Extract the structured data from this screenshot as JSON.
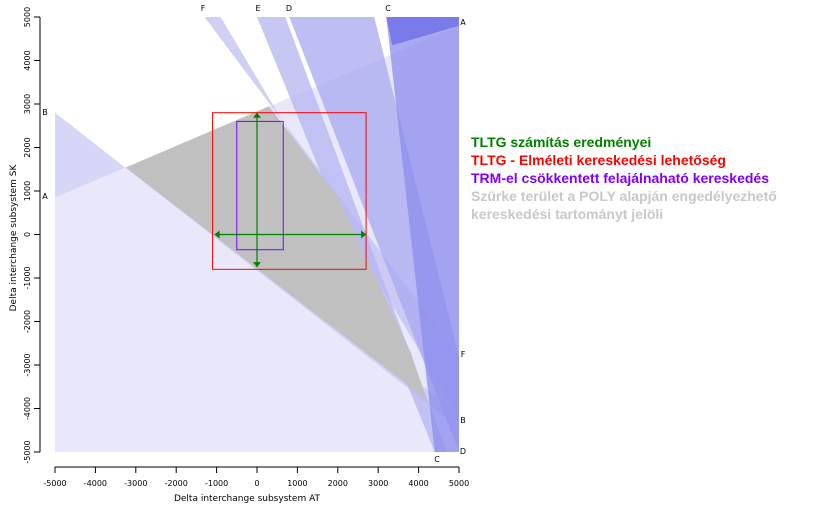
{
  "chart_data": {
    "type": "area",
    "title": "",
    "xlabel": "Delta interchange subsystem  AT",
    "ylabel": "Delta interchange subsystem  SK",
    "xlim": [
      -5000,
      5000
    ],
    "ylim": [
      -5000,
      5000
    ],
    "xticks": [
      "-5000",
      "-4000",
      "-3000",
      "-2000",
      "-1000",
      "0",
      "1000",
      "2000",
      "3000",
      "4000",
      "5000"
    ],
    "yticks": [
      "-5000",
      "-4000",
      "-3000",
      "-2000",
      "-1000",
      "0",
      "1000",
      "2000",
      "3000",
      "4000",
      "5000"
    ],
    "grid": false,
    "legend_position": "right",
    "constraint_bands": [
      {
        "name": "A",
        "label_top": "A",
        "label_bottom": "A",
        "points": [
          [
            -5000,
            -5000
          ],
          [
            5000,
            -5000
          ],
          [
            5000,
            4800
          ],
          [
            -5000,
            850
          ]
        ],
        "color": "#e0e0f8"
      },
      {
        "name": "B",
        "label_top": "B",
        "label_bottom": "B",
        "points": [
          [
            -5000,
            2800
          ],
          [
            -5000,
            850
          ],
          [
            -3250,
            1540
          ],
          [
            5000,
            -4100
          ],
          [
            5000,
            -4450
          ]
        ],
        "color": "#c8c8f4"
      },
      {
        "name": "F",
        "label_top": "F",
        "label_bottom": "F",
        "points": [
          [
            -1300,
            5000
          ],
          [
            -900,
            5000
          ],
          [
            5000,
            -4200
          ],
          [
            5000,
            -2800
          ]
        ],
        "color": "#c0c0f2"
      },
      {
        "name": "E",
        "label_top": "E",
        "label_bottom": "",
        "points": [
          [
            0,
            5000
          ],
          [
            700,
            5000
          ],
          [
            4700,
            -5000
          ],
          [
            4400,
            -5000
          ]
        ],
        "color": "#b4b4f0"
      },
      {
        "name": "D",
        "label_top": "D",
        "label_bottom": "D",
        "points": [
          [
            800,
            5000
          ],
          [
            2900,
            5000
          ],
          [
            5000,
            -2800
          ],
          [
            5000,
            -5000
          ]
        ],
        "color": "#a8a8f0"
      },
      {
        "name": "C",
        "label_top": "C",
        "label_bottom": "C",
        "points": [
          [
            3200,
            5000
          ],
          [
            5000,
            5000
          ],
          [
            5000,
            -5000
          ],
          [
            4400,
            -5000
          ]
        ],
        "color": "#8c8cee"
      }
    ],
    "corner_patch": {
      "points": [
        [
          3200,
          5000
        ],
        [
          5000,
          5000
        ],
        [
          5000,
          4800
        ],
        [
          3350,
          4350
        ]
      ],
      "color": "#6e6ee8"
    },
    "feasible_region": {
      "points": [
        [
          -3250,
          1540
        ],
        [
          300,
          2950
        ],
        [
          2000,
          850
        ],
        [
          3800,
          -2700
        ],
        [
          4200,
          -3800
        ]
      ],
      "color": "#c0c0c0"
    },
    "tltg_result": {
      "x_range": [
        -1050,
        2700
      ],
      "y_range": [
        -750,
        2800
      ],
      "center": [
        0,
        0
      ],
      "color": "#008000"
    },
    "theoretical_trade": {
      "x_range": [
        -1100,
        2700
      ],
      "y_range": [
        -800,
        2800
      ],
      "color": "#ff0000"
    },
    "trm_reduced": {
      "x_range": [
        -500,
        650
      ],
      "y_range": [
        -350,
        2600
      ],
      "color": "#8000ff"
    }
  },
  "legend": {
    "items": [
      {
        "text": "TLTG számítás eredményei",
        "color": "#008000"
      },
      {
        "text": "TLTG - Elméleti kereskedési lehetőség",
        "color": "#ff0000"
      },
      {
        "text": "TRM-el csökkentett felajálnaható kereskedés",
        "color": "#8000ff"
      },
      {
        "text": "Szürke terület a POLY alapján engedélyezhető",
        "color": "#c8c8c8"
      },
      {
        "text": "kereskedési tartományt jelöli",
        "color": "#c8c8c8"
      }
    ]
  }
}
